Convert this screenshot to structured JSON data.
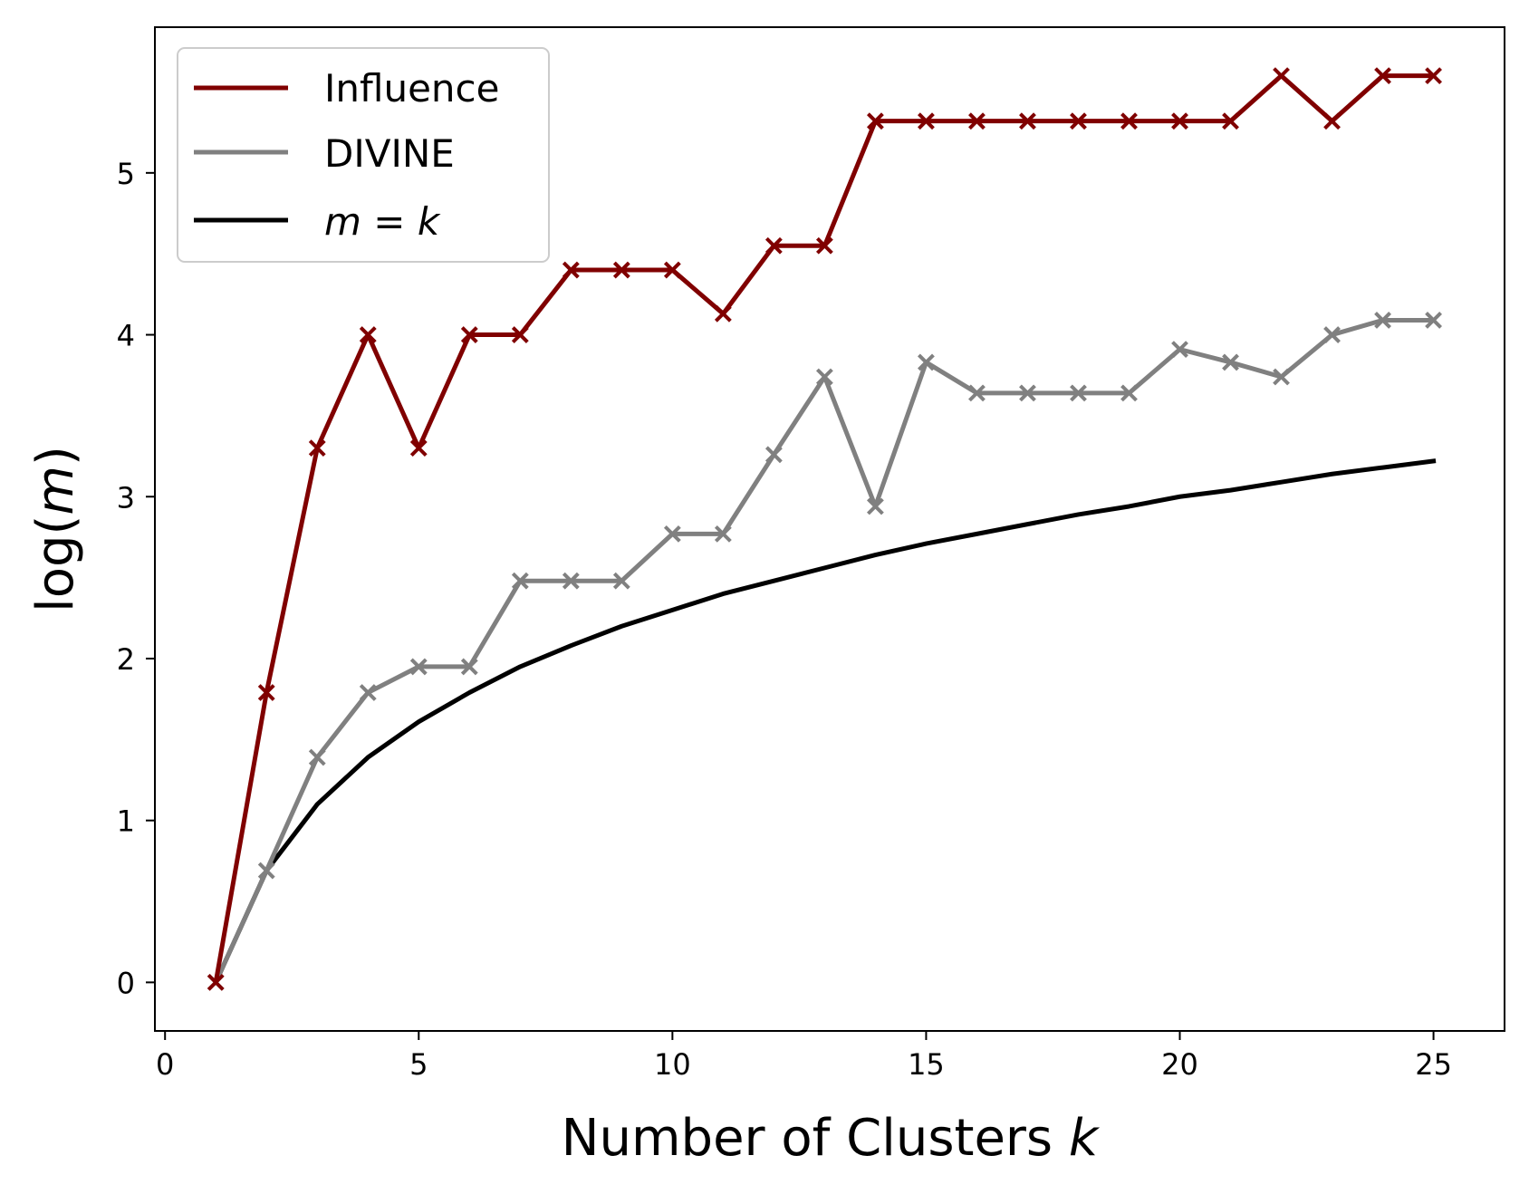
{
  "chart_data": {
    "type": "line",
    "xlabel": "Number of Clusters",
    "xlabel_var": "k",
    "ylabel_prefix": "log(",
    "ylabel_var": "m",
    "ylabel_suffix": ")",
    "xlim": [
      -0.2,
      26.4
    ],
    "ylim": [
      -0.3,
      5.9
    ],
    "xticks": [
      0,
      5,
      10,
      15,
      20,
      25
    ],
    "yticks": [
      0,
      1,
      2,
      3,
      4,
      5
    ],
    "xtick_labels": [
      "0",
      "5",
      "10",
      "15",
      "20",
      "25"
    ],
    "ytick_labels": [
      "0",
      "1",
      "2",
      "3",
      "4",
      "5"
    ],
    "grid": false,
    "legend_position": "top-left",
    "series": [
      {
        "name": "Influence",
        "color": "#800000",
        "marker": "x",
        "x": [
          1,
          2,
          3,
          4,
          5,
          6,
          7,
          8,
          9,
          10,
          11,
          12,
          13,
          14,
          15,
          16,
          17,
          18,
          19,
          20,
          21,
          22,
          23,
          24,
          25
        ],
        "y": [
          0,
          1.79,
          3.3,
          4.0,
          3.3,
          4.0,
          4.0,
          4.4,
          4.4,
          4.4,
          4.13,
          4.55,
          4.55,
          5.32,
          5.32,
          5.32,
          5.32,
          5.32,
          5.32,
          5.32,
          5.32,
          5.6,
          5.32,
          5.6,
          5.6
        ]
      },
      {
        "name": "DIVINE",
        "color": "#808080",
        "marker": "x",
        "x": [
          1,
          2,
          3,
          4,
          5,
          6,
          7,
          8,
          9,
          10,
          11,
          12,
          13,
          14,
          15,
          16,
          17,
          18,
          19,
          20,
          21,
          22,
          23,
          24,
          25
        ],
        "y": [
          0,
          0.69,
          1.39,
          1.79,
          1.95,
          1.95,
          2.48,
          2.48,
          2.48,
          2.77,
          2.77,
          3.26,
          3.74,
          2.94,
          3.83,
          3.64,
          3.64,
          3.64,
          3.64,
          3.91,
          3.83,
          3.74,
          4.0,
          4.09,
          4.09
        ]
      },
      {
        "name_lhs": "m",
        "name_eq": " = ",
        "name_rhs": "k",
        "color": "#000000",
        "marker": "none",
        "function": "log(k)",
        "x": [
          1,
          2,
          3,
          4,
          5,
          6,
          7,
          8,
          9,
          10,
          11,
          12,
          13,
          14,
          15,
          16,
          17,
          18,
          19,
          20,
          21,
          22,
          23,
          24,
          25
        ],
        "y": [
          0,
          0.69,
          1.1,
          1.39,
          1.61,
          1.79,
          1.95,
          2.08,
          2.2,
          2.3,
          2.4,
          2.48,
          2.56,
          2.64,
          2.71,
          2.77,
          2.83,
          2.89,
          2.94,
          3.0,
          3.04,
          3.09,
          3.14,
          3.18,
          3.22
        ]
      }
    ]
  }
}
